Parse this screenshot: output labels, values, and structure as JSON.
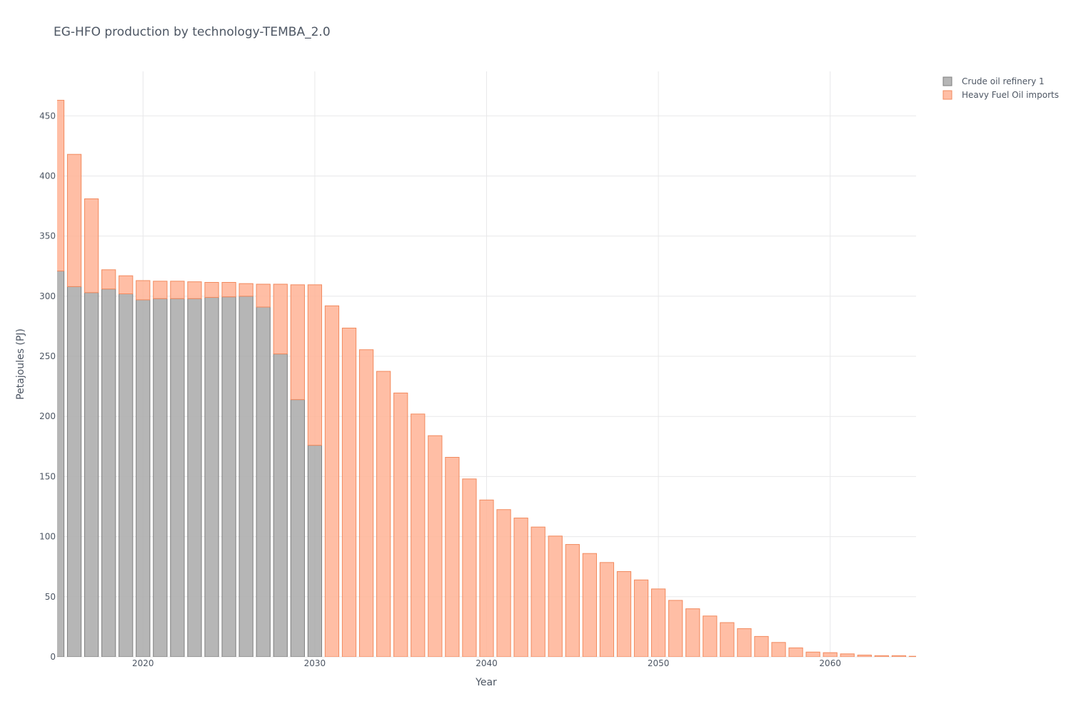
{
  "chart_data": {
    "type": "bar",
    "barmode": "stack",
    "title": "EG-HFO production by technology-TEMBA_2.0",
    "xlabel": "Year",
    "ylabel": "Petajoules (PJ)",
    "xlim": [
      2015,
      2065
    ],
    "ylim": [
      0,
      487
    ],
    "x_ticks": [
      2020,
      2030,
      2040,
      2050,
      2060
    ],
    "y_ticks": [
      0,
      50,
      100,
      150,
      200,
      250,
      300,
      350,
      400,
      450
    ],
    "grid": true,
    "legend_position": "top-right",
    "x": [
      2015,
      2016,
      2017,
      2018,
      2019,
      2020,
      2021,
      2022,
      2023,
      2024,
      2025,
      2026,
      2027,
      2028,
      2029,
      2030,
      2031,
      2032,
      2033,
      2034,
      2035,
      2036,
      2037,
      2038,
      2039,
      2040,
      2041,
      2042,
      2043,
      2044,
      2045,
      2046,
      2047,
      2048,
      2049,
      2050,
      2051,
      2052,
      2053,
      2054,
      2055,
      2056,
      2057,
      2058,
      2059,
      2060,
      2061,
      2062,
      2063,
      2064,
      2065
    ],
    "series": [
      {
        "name": "Crude oil refinery 1",
        "color": "#a9a9a9",
        "line_color": "#7f7f7f",
        "values": [
          321,
          308,
          303,
          306,
          302,
          297,
          298,
          298,
          298,
          299,
          299.5,
          300,
          291,
          252,
          214,
          176,
          0,
          0,
          0,
          0,
          0,
          0,
          0,
          0,
          0,
          0,
          0,
          0,
          0,
          0,
          0,
          0,
          0,
          0,
          0,
          0,
          0,
          0,
          0,
          0,
          0,
          0,
          0,
          0,
          0,
          0,
          0,
          0,
          0,
          0,
          0
        ]
      },
      {
        "name": "Heavy Fuel Oil imports",
        "color": "#ffb395",
        "line_color": "#f28a5e",
        "values": [
          142,
          110,
          78,
          16,
          15,
          16,
          14.5,
          14.5,
          14,
          12.5,
          12,
          10.5,
          19,
          58,
          95.5,
          133.5,
          292,
          273.5,
          255.5,
          237.5,
          219.5,
          202,
          184,
          166,
          148,
          130.5,
          122.5,
          115.5,
          108,
          100.5,
          93.5,
          86,
          78.5,
          71,
          64,
          56.5,
          47,
          40,
          34,
          28.5,
          23.5,
          17,
          12,
          7.5,
          4,
          3.5,
          2.5,
          1.5,
          1,
          1,
          0.5
        ]
      }
    ]
  }
}
